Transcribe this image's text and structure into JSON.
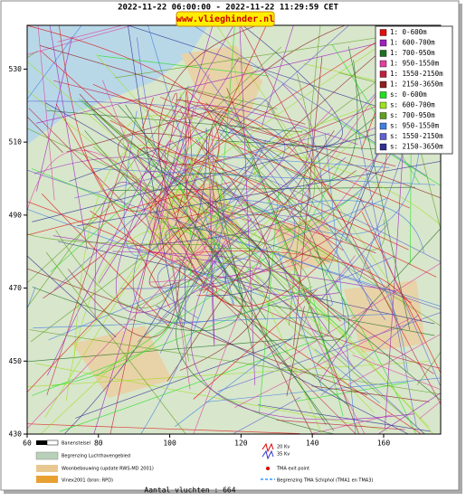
{
  "header": {
    "title": "2022-11-22 06:00:00 - 2022-11-22 11:29:59 CET",
    "site": "www.vlieghinder.nl"
  },
  "map": {
    "xlim": [
      60,
      176
    ],
    "ylim": [
      430,
      542
    ],
    "xticks": [
      60,
      80,
      100,
      120,
      140,
      160
    ],
    "yticks": [
      430,
      450,
      470,
      490,
      510,
      530
    ]
  },
  "legend": [
    {
      "label": "1: 0-600m",
      "color": "#e01010"
    },
    {
      "label": "1: 600-700m",
      "color": "#a020c0"
    },
    {
      "label": "1: 700-950m",
      "color": "#207020"
    },
    {
      "label": "1: 950-1550m",
      "color": "#e040a0"
    },
    {
      "label": "1: 1550-2150m",
      "color": "#c02040"
    },
    {
      "label": "1: 2150-3650m",
      "color": "#902020"
    },
    {
      "label": "s: 0-600m",
      "color": "#20e020"
    },
    {
      "label": "s: 600-700m",
      "color": "#a0e020"
    },
    {
      "label": "s: 700-950m",
      "color": "#60a020"
    },
    {
      "label": "s: 950-1550m",
      "color": "#4080e0"
    },
    {
      "label": "s: 1550-2150m",
      "color": "#6060d0"
    },
    {
      "label": "s: 2150-3650m",
      "color": "#303090"
    }
  ],
  "bottom_legend": [
    "Banenstelsel",
    "Begrenzing Luchthavengebied",
    "Woonbebouwing (update RWS-MD 2001)",
    "Vinex2001 (bron: RPD)",
    "20 Kv",
    "35 Kv",
    "TMA exit point",
    "Begrenzing TMA Schiphol  (TMA1 en TMA3)"
  ],
  "footer": "Aantal vluchten : 664"
}
